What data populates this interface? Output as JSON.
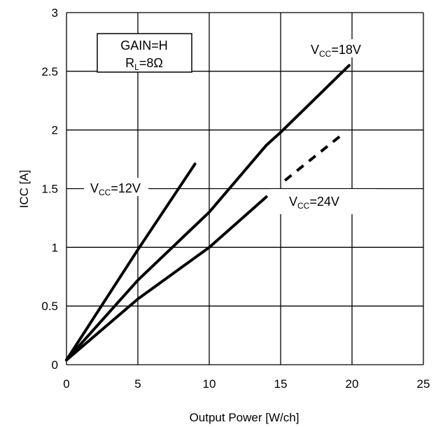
{
  "chart_data": {
    "type": "line",
    "xlabel": "Output Power [W/ch]",
    "ylabel": "ICC [A]",
    "xlim": [
      0,
      25
    ],
    "ylim": [
      0,
      3
    ],
    "x_ticks": [
      "0",
      "5",
      "10",
      "15",
      "20",
      "25"
    ],
    "y_ticks": [
      "0",
      "0.5",
      "1",
      "1.5",
      "2",
      "2.5",
      "3"
    ],
    "grid": true,
    "conditions": {
      "line1": "GAIN=H",
      "line2_main": "R",
      "line2_sub": "L",
      "line2_rest": "=8Ω"
    },
    "series": [
      {
        "name": "VCC=12V",
        "label_main": "V",
        "label_sub": "CC",
        "label_rest": "=12V",
        "points": [
          [
            0,
            0.04
          ],
          [
            5,
            0.98
          ],
          [
            9,
            1.71
          ]
        ],
        "dashed_points": []
      },
      {
        "name": "VCC=18V",
        "label_main": "V",
        "label_sub": "CC",
        "label_rest": "=18V",
        "points": [
          [
            0,
            0.04
          ],
          [
            5,
            0.72
          ],
          [
            10,
            1.3
          ],
          [
            14,
            1.87
          ],
          [
            15,
            1.98
          ],
          [
            19.8,
            2.55
          ]
        ],
        "dashed_points": []
      },
      {
        "name": "VCC=24V",
        "label_main": "V",
        "label_sub": "CC",
        "label_rest": "=24V",
        "points": [
          [
            0,
            0.04
          ],
          [
            5,
            0.56
          ],
          [
            10,
            1.0
          ],
          [
            14,
            1.43
          ]
        ],
        "dashed_points": [
          [
            15.3,
            1.57
          ],
          [
            19.5,
            1.98
          ]
        ]
      }
    ]
  }
}
